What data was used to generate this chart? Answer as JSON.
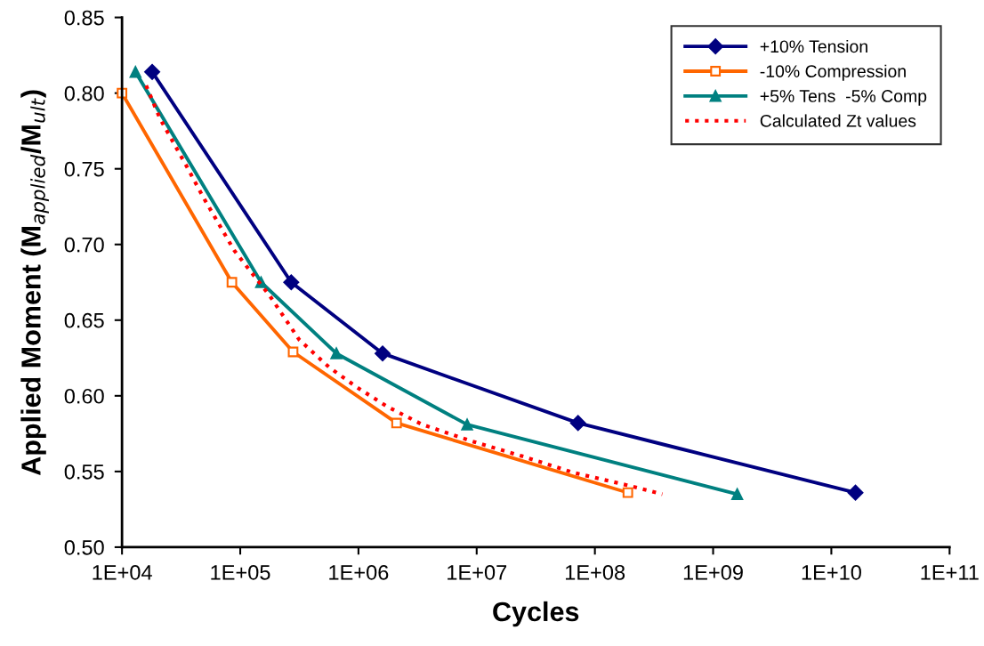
{
  "chart_data": {
    "type": "line",
    "xlabel": "Cycles",
    "ylabel": "Applied Moment (M$_{applied}$/M$_{ult}$)",
    "log": "x",
    "xlim": [
      10000,
      100000000000
    ],
    "xticks": [
      {
        "value": 10000,
        "label": "1E+04"
      },
      {
        "value": 100000,
        "label": "1E+05"
      },
      {
        "value": 1000000,
        "label": "1E+06"
      },
      {
        "value": 10000000,
        "label": "1E+07"
      },
      {
        "value": 100000000,
        "label": "1E+08"
      },
      {
        "value": 1000000000,
        "label": "1E+09"
      },
      {
        "value": 10000000000,
        "label": "1E+10"
      },
      {
        "value": 100000000000,
        "label": "1E+11"
      }
    ],
    "ylim": [
      0.5,
      0.85
    ],
    "yticks": [
      {
        "value": 0.5,
        "label": "0.50"
      },
      {
        "value": 0.55,
        "label": "0.55"
      },
      {
        "value": 0.6,
        "label": "0.60"
      },
      {
        "value": 0.65,
        "label": "0.65"
      },
      {
        "value": 0.7,
        "label": "0.70"
      },
      {
        "value": 0.75,
        "label": "0.75"
      },
      {
        "value": 0.8,
        "label": "0.80"
      },
      {
        "value": 0.85,
        "label": "0.85"
      }
    ],
    "grid": false,
    "legend": "top right",
    "series": [
      {
        "name": "+10% Tension",
        "color": "#000080",
        "marker": "diamond",
        "line_style": "solid",
        "x": [
          18000,
          270000,
          1600000,
          72000000,
          16000000000
        ],
        "values": [
          0.814,
          0.675,
          0.628,
          0.582,
          0.536
        ]
      },
      {
        "name": "-10% Compression",
        "color": "#ff6600",
        "marker": "square",
        "line_style": "solid",
        "x": [
          10000,
          85000,
          280000,
          2100000,
          190000000
        ],
        "values": [
          0.8,
          0.675,
          0.629,
          0.582,
          0.536
        ]
      },
      {
        "name": "+5% Tens  -5% Comp",
        "color": "#008080",
        "marker": "triangle",
        "line_style": "solid",
        "x": [
          13000,
          150000,
          650000,
          8300000,
          1600000000
        ],
        "values": [
          0.814,
          0.675,
          0.628,
          0.581,
          0.535
        ]
      },
      {
        "name": "Calculated Zt values",
        "color": "#ff0000",
        "marker": "none",
        "line_style": "dotted",
        "x": [
          16000,
          21000,
          35000,
          48000,
          89000,
          178000,
          316000,
          562000,
          955000,
          1740000,
          3470000,
          9100000,
          24500000,
          67600000,
          186000000,
          372000000
        ],
        "values": [
          0.805,
          0.783,
          0.752,
          0.732,
          0.696,
          0.666,
          0.637,
          0.619,
          0.606,
          0.593,
          0.581,
          0.57,
          0.56,
          0.549,
          0.541,
          0.535
        ]
      }
    ]
  }
}
